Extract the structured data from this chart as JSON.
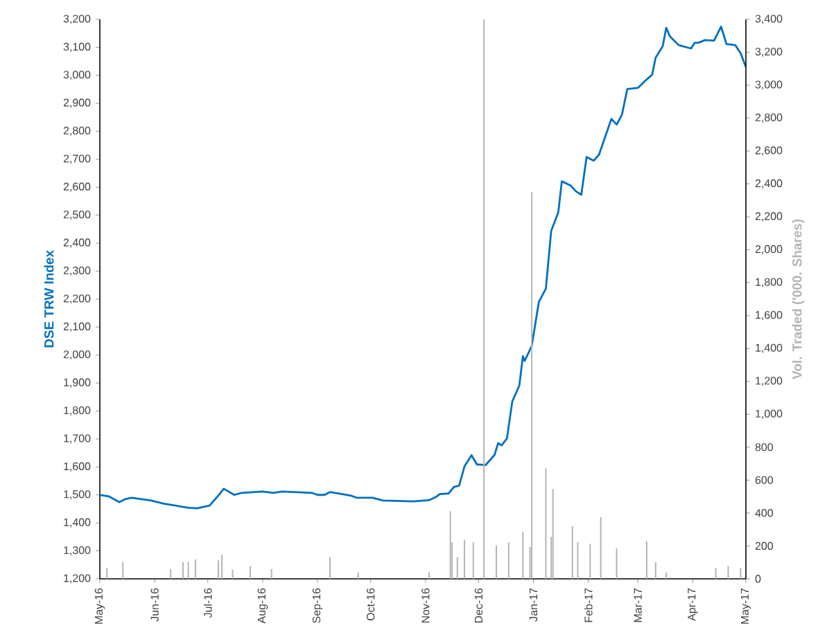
{
  "chart_data": {
    "type": "line",
    "ylabel": "DSE TRW Index",
    "y2label": "Vol. Traded ('000. Shares)",
    "xlim": [
      "2016-05-01",
      "2017-05-01"
    ],
    "xticks": [
      {
        "value": "2016-05-01",
        "label": "May-16"
      },
      {
        "value": "2016-06-01",
        "label": "Jun-16"
      },
      {
        "value": "2016-07-01",
        "label": "Jul-16"
      },
      {
        "value": "2016-08-01",
        "label": "Aug-16"
      },
      {
        "value": "2016-09-01",
        "label": "Sep-16"
      },
      {
        "value": "2016-10-01",
        "label": "Oct-16"
      },
      {
        "value": "2016-11-01",
        "label": "Nov-16"
      },
      {
        "value": "2016-12-01",
        "label": "Dec-16"
      },
      {
        "value": "2017-01-01",
        "label": "Jan-17"
      },
      {
        "value": "2017-02-01",
        "label": "Feb-17"
      },
      {
        "value": "2017-03-01",
        "label": "Mar-17"
      },
      {
        "value": "2017-04-01",
        "label": "Apr-17"
      },
      {
        "value": "2017-05-01",
        "label": "May-17"
      }
    ],
    "ylim": [
      1200,
      3200
    ],
    "yticks": [
      {
        "value": 1200,
        "label": "1,200"
      },
      {
        "value": 1300,
        "label": "1,300"
      },
      {
        "value": 1400,
        "label": "1,400"
      },
      {
        "value": 1500,
        "label": "1,500"
      },
      {
        "value": 1600,
        "label": "1,600"
      },
      {
        "value": 1700,
        "label": "1,700"
      },
      {
        "value": 1800,
        "label": "1,800"
      },
      {
        "value": 1900,
        "label": "1,900"
      },
      {
        "value": 2000,
        "label": "2,000"
      },
      {
        "value": 2100,
        "label": "2,100"
      },
      {
        "value": 2200,
        "label": "2,200"
      },
      {
        "value": 2300,
        "label": "2,300"
      },
      {
        "value": 2400,
        "label": "2,400"
      },
      {
        "value": 2500,
        "label": "2,500"
      },
      {
        "value": 2600,
        "label": "2,600"
      },
      {
        "value": 2700,
        "label": "2,700"
      },
      {
        "value": 2800,
        "label": "2,800"
      },
      {
        "value": 2900,
        "label": "2,900"
      },
      {
        "value": 3000,
        "label": "3,000"
      },
      {
        "value": 3100,
        "label": "3,100"
      },
      {
        "value": 3200,
        "label": "3,200"
      }
    ],
    "y2lim": [
      0,
      3400
    ],
    "y2ticks": [
      0,
      200,
      400,
      600,
      800,
      {
        "value": 1000,
        "label": "1,000"
      },
      {
        "value": 1200,
        "label": "1,200"
      },
      {
        "value": 1400,
        "label": "1,400"
      },
      {
        "value": 1600,
        "label": "1,600"
      },
      {
        "value": 1800,
        "label": "1,800"
      },
      {
        "value": 2000,
        "label": "2,000"
      },
      {
        "value": 2200,
        "label": "2,200"
      },
      {
        "value": 2400,
        "label": "2,400"
      },
      {
        "value": 2600,
        "label": "2,600"
      },
      {
        "value": 2800,
        "label": "2,800"
      },
      {
        "value": 3000,
        "label": "3,000"
      },
      {
        "value": 3200,
        "label": "3,200"
      },
      {
        "value": 3400,
        "label": "3,400"
      }
    ],
    "legend": false,
    "grid": false,
    "marker": "none",
    "line_style": "solid",
    "series": [
      {
        "type": "bar",
        "axis": "y2",
        "color": "#b4b4b4",
        "x": [
          "2016-05-05",
          "2016-05-14",
          "2016-06-10",
          "2016-06-17",
          "2016-06-20",
          "2016-06-24",
          "2016-07-07",
          "2016-07-09",
          "2016-07-15",
          "2016-07-25",
          "2016-08-06",
          "2016-09-08",
          "2016-09-24",
          "2016-11-03",
          "2016-11-15",
          "2016-11-16",
          "2016-11-19",
          "2016-11-23",
          "2016-11-28",
          "2016-12-04",
          "2016-12-11",
          "2016-12-18",
          "2016-12-26",
          "2016-12-30",
          "2016-12-31",
          "2017-01-08",
          "2017-01-11",
          "2017-01-12",
          "2017-01-23",
          "2017-01-26",
          "2017-02-02",
          "2017-02-08",
          "2017-02-17",
          "2017-03-06",
          "2017-03-11",
          "2017-03-17",
          "2017-04-14",
          "2017-04-21",
          "2017-04-28"
        ],
        "values": [
          67,
          101,
          59,
          101,
          101,
          118,
          112,
          146,
          56,
          78,
          59,
          132,
          39,
          39,
          411,
          221,
          132,
          235,
          221,
          3400,
          202,
          221,
          286,
          193,
          2350,
          672,
          255,
          546,
          319,
          221,
          213,
          375,
          185,
          227,
          101,
          39,
          67,
          78,
          67
        ]
      },
      {
        "color": "#0070c0",
        "x": [
          "2016-05-01",
          "2016-05-06",
          "2016-05-12",
          "2016-05-15",
          "2016-05-19",
          "2016-05-30",
          "2016-06-06",
          "2016-06-20",
          "2016-06-25",
          "2016-07-02",
          "2016-07-07",
          "2016-07-10",
          "2016-07-16",
          "2016-07-20",
          "2016-08-01",
          "2016-08-07",
          "2016-08-12",
          "2016-08-29",
          "2016-09-01",
          "2016-09-05",
          "2016-09-08",
          "2016-09-20",
          "2016-09-23",
          "2016-10-02",
          "2016-10-08",
          "2016-10-25",
          "2016-11-03",
          "2016-11-07",
          "2016-11-09",
          "2016-11-14",
          "2016-11-17",
          "2016-11-20",
          "2016-11-23",
          "2016-11-27",
          "2016-11-30",
          "2016-12-05",
          "2016-12-10",
          "2016-12-12",
          "2016-12-14",
          "2016-12-17",
          "2016-12-20",
          "2016-12-24",
          "2016-12-26",
          "2016-12-27",
          "2016-12-31",
          "2017-01-04",
          "2017-01-08",
          "2017-01-11",
          "2017-01-15",
          "2017-01-17",
          "2017-01-22",
          "2017-01-25",
          "2017-01-28",
          "2017-01-31",
          "2017-02-04",
          "2017-02-07",
          "2017-02-14",
          "2017-02-17",
          "2017-02-20",
          "2017-02-23",
          "2017-03-01",
          "2017-03-05",
          "2017-03-09",
          "2017-03-11",
          "2017-03-15",
          "2017-03-17",
          "2017-03-19",
          "2017-03-24",
          "2017-03-31",
          "2017-04-02",
          "2017-04-04",
          "2017-04-08",
          "2017-04-13",
          "2017-04-17",
          "2017-04-20",
          "2017-04-25",
          "2017-04-28",
          "2017-05-01"
        ],
        "values": [
          1500,
          1495,
          1474,
          1484,
          1490,
          1480,
          1469,
          1454,
          1452,
          1462,
          1498,
          1522,
          1500,
          1507,
          1512,
          1507,
          1512,
          1507,
          1500,
          1500,
          1510,
          1497,
          1490,
          1490,
          1480,
          1477,
          1481,
          1493,
          1503,
          1505,
          1528,
          1533,
          1602,
          1642,
          1609,
          1607,
          1643,
          1685,
          1677,
          1702,
          1834,
          1891,
          1996,
          1979,
          2032,
          2189,
          2238,
          2444,
          2510,
          2621,
          2606,
          2585,
          2573,
          2708,
          2695,
          2716,
          2844,
          2824,
          2860,
          2951,
          2955,
          2980,
          3002,
          3063,
          3104,
          3170,
          3140,
          3108,
          3096,
          3116,
          3116,
          3126,
          3124,
          3174,
          3112,
          3108,
          3079,
          3030
        ]
      }
    ]
  }
}
